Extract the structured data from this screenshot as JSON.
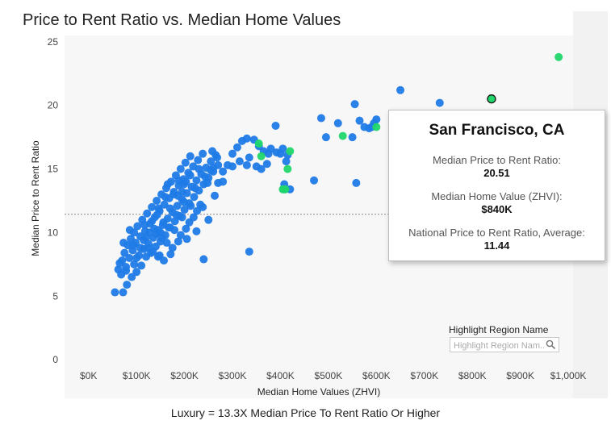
{
  "title": "Price to Rent Ratio vs. Median Home Values",
  "caption": "Luxury = 13.3X Median Price To Rent Ratio Or Higher",
  "colors": {
    "blue": "#1f7ae6",
    "green": "#21d66a",
    "reference_line": "#888888"
  },
  "chart_data": {
    "type": "scatter",
    "title": "Price to Rent Ratio vs. Median Home Values",
    "xlabel": "Median Home Values (ZHVI)",
    "ylabel": "Median Price to Rent Ratio",
    "xlim": [
      -50000,
      1010000
    ],
    "ylim": [
      -0.5,
      25.5
    ],
    "x_ticks": [
      0,
      100000,
      200000,
      300000,
      400000,
      500000,
      600000,
      700000,
      800000,
      900000,
      1000000
    ],
    "x_tick_labels": [
      "$0K",
      "$100K",
      "$200K",
      "$300K",
      "$400K",
      "$500K",
      "$600K",
      "$700K",
      "$800K",
      "$900K",
      "$1,000K"
    ],
    "y_ticks": [
      0,
      5,
      10,
      15,
      20,
      25
    ],
    "y_tick_labels": [
      "0",
      "5",
      "10",
      "15",
      "20",
      "25"
    ],
    "reference_line": {
      "y": 11.44,
      "style": "dotted"
    },
    "grid": false,
    "series": [
      {
        "color": "#1f7ae6",
        "points": [
          [
            55000,
            5.3
          ],
          [
            72000,
            5.3
          ],
          [
            80000,
            5.9
          ],
          [
            90000,
            6.5
          ],
          [
            68000,
            6.7
          ],
          [
            100000,
            6.9
          ],
          [
            62000,
            7.1
          ],
          [
            78000,
            7.3
          ],
          [
            95000,
            7.5
          ],
          [
            110000,
            7.4
          ],
          [
            70000,
            7.8
          ],
          [
            85000,
            8.0
          ],
          [
            105000,
            8.2
          ],
          [
            120000,
            8.1
          ],
          [
            75000,
            8.4
          ],
          [
            92000,
            8.6
          ],
          [
            115000,
            8.7
          ],
          [
            130000,
            8.4
          ],
          [
            82000,
            9.0
          ],
          [
            98000,
            9.2
          ],
          [
            125000,
            9.1
          ],
          [
            140000,
            8.9
          ],
          [
            88000,
            9.5
          ],
          [
            108000,
            9.7
          ],
          [
            135000,
            9.6
          ],
          [
            150000,
            9.3
          ],
          [
            95000,
            10.0
          ],
          [
            118000,
            10.1
          ],
          [
            145000,
            10.2
          ],
          [
            160000,
            9.8
          ],
          [
            102000,
            10.5
          ],
          [
            128000,
            10.7
          ],
          [
            155000,
            10.6
          ],
          [
            170000,
            10.4
          ],
          [
            112000,
            11.0
          ],
          [
            138000,
            11.2
          ],
          [
            165000,
            11.1
          ],
          [
            180000,
            10.9
          ],
          [
            122000,
            11.5
          ],
          [
            148000,
            11.7
          ],
          [
            175000,
            11.6
          ],
          [
            190000,
            11.3
          ],
          [
            132000,
            12.0
          ],
          [
            158000,
            12.2
          ],
          [
            185000,
            12.1
          ],
          [
            200000,
            11.8
          ],
          [
            142000,
            12.5
          ],
          [
            168000,
            12.7
          ],
          [
            195000,
            12.6
          ],
          [
            210000,
            12.3
          ],
          [
            152000,
            13.0
          ],
          [
            178000,
            13.2
          ],
          [
            205000,
            13.1
          ],
          [
            220000,
            12.8
          ],
          [
            162000,
            13.5
          ],
          [
            188000,
            13.7
          ],
          [
            215000,
            13.6
          ],
          [
            230000,
            13.3
          ],
          [
            172000,
            14.0
          ],
          [
            198000,
            14.2
          ],
          [
            225000,
            14.1
          ],
          [
            240000,
            13.8
          ],
          [
            182000,
            14.5
          ],
          [
            208000,
            14.7
          ],
          [
            235000,
            14.6
          ],
          [
            250000,
            14.3
          ],
          [
            192000,
            15.0
          ],
          [
            218000,
            15.2
          ],
          [
            245000,
            15.1
          ],
          [
            260000,
            14.8
          ],
          [
            202000,
            15.5
          ],
          [
            228000,
            15.7
          ],
          [
            255000,
            15.6
          ],
          [
            270000,
            15.3
          ],
          [
            212000,
            16.0
          ],
          [
            238000,
            16.2
          ],
          [
            265000,
            16.1
          ],
          [
            258000,
            16.4
          ],
          [
            100000,
            8.0
          ],
          [
            115000,
            9.4
          ],
          [
            132000,
            10.9
          ],
          [
            146000,
            11.9
          ],
          [
            160000,
            12.8
          ],
          [
            124000,
            8.8
          ],
          [
            141000,
            9.9
          ],
          [
            156000,
            10.8
          ],
          [
            170000,
            11.9
          ],
          [
            186000,
            12.9
          ],
          [
            134000,
            8.5
          ],
          [
            152000,
            9.6
          ],
          [
            167000,
            10.4
          ],
          [
            183000,
            11.4
          ],
          [
            199000,
            12.4
          ],
          [
            145000,
            8.1
          ],
          [
            163000,
            9.2
          ],
          [
            179000,
            10.2
          ],
          [
            195000,
            11.2
          ],
          [
            213000,
            12.1
          ],
          [
            157000,
            7.8
          ],
          [
            175000,
            8.8
          ],
          [
            192000,
            9.8
          ],
          [
            210000,
            10.8
          ],
          [
            226000,
            11.7
          ],
          [
            171000,
            8.3
          ],
          [
            187000,
            9.3
          ],
          [
            203000,
            10.3
          ],
          [
            219000,
            11.2
          ],
          [
            233000,
            12.2
          ],
          [
            240000,
            7.9
          ],
          [
            148000,
            8.2
          ],
          [
            205000,
            9.5
          ],
          [
            225000,
            10.1
          ],
          [
            195000,
            13.2
          ],
          [
            222000,
            13.5
          ],
          [
            248000,
            13.9
          ],
          [
            263000,
            12.9
          ],
          [
            238000,
            12.0
          ],
          [
            250000,
            11.0
          ],
          [
            255000,
            14.9
          ],
          [
            268000,
            15.9
          ],
          [
            280000,
            14.8
          ],
          [
            290000,
            15.3
          ],
          [
            300000,
            16.2
          ],
          [
            310000,
            16.7
          ],
          [
            320000,
            17.2
          ],
          [
            330000,
            17.4
          ],
          [
            345000,
            17.3
          ],
          [
            355000,
            16.8
          ],
          [
            365000,
            16.4
          ],
          [
            300000,
            15.2
          ],
          [
            315000,
            15.6
          ],
          [
            335000,
            15.9
          ],
          [
            350000,
            15.2
          ],
          [
            360000,
            15.0
          ],
          [
            280000,
            14.0
          ],
          [
            270000,
            13.9
          ],
          [
            330000,
            15.3
          ],
          [
            260000,
            15.1
          ],
          [
            372000,
            15.4
          ],
          [
            380000,
            16.6
          ],
          [
            392000,
            16.3
          ],
          [
            400000,
            16.2
          ],
          [
            390000,
            18.4
          ],
          [
            408000,
            13.8
          ],
          [
            412000,
            15.6
          ],
          [
            415000,
            16.1
          ],
          [
            420000,
            13.4
          ],
          [
            335000,
            8.5
          ],
          [
            408000,
            13.4
          ],
          [
            405000,
            16.6
          ],
          [
            375000,
            16.2
          ],
          [
            470000,
            14.1
          ],
          [
            485000,
            19.0
          ],
          [
            495000,
            17.5
          ],
          [
            520000,
            18.6
          ],
          [
            550000,
            17.5
          ],
          [
            555000,
            20.1
          ],
          [
            575000,
            18.3
          ],
          [
            590000,
            18.3
          ],
          [
            600000,
            18.9
          ],
          [
            650000,
            21.2
          ],
          [
            663000,
            14.2
          ],
          [
            692000,
            18.8
          ],
          [
            720000,
            19.0
          ],
          [
            732000,
            20.2
          ],
          [
            558000,
            13.9
          ],
          [
            565000,
            18.8
          ],
          [
            585000,
            18.2
          ],
          [
            595000,
            18.6
          ],
          [
            127000,
            10.0
          ],
          [
            117000,
            10.6
          ],
          [
            108000,
            8.8
          ],
          [
            93000,
            9.0
          ],
          [
            86000,
            10.2
          ],
          [
            78000,
            7.0
          ],
          [
            65000,
            7.6
          ],
          [
            73000,
            9.2
          ],
          [
            120000,
            9.6
          ],
          [
            137000,
            10.3
          ],
          [
            143000,
            11.4
          ],
          [
            150000,
            10.0
          ],
          [
            165000,
            13.8
          ],
          [
            177000,
            13.0
          ],
          [
            188000,
            14.1
          ],
          [
            199000,
            13.8
          ],
          [
            212000,
            14.5
          ],
          [
            203000,
            14.0
          ],
          [
            230000,
            15.0
          ],
          [
            243000,
            14.4
          ]
        ]
      },
      {
        "color": "#21d66a",
        "points": [
          [
            355000,
            17.0
          ],
          [
            360000,
            16.0
          ],
          [
            405000,
            13.4
          ],
          [
            410000,
            13.4
          ],
          [
            415000,
            15.0
          ],
          [
            420000,
            16.4
          ],
          [
            530000,
            17.6
          ],
          [
            600000,
            18.3
          ],
          [
            840000,
            20.5
          ],
          [
            980000,
            23.8
          ]
        ]
      }
    ],
    "highlighted_point": {
      "x": 840000,
      "y": 20.51,
      "name": "San Francisco, CA"
    }
  },
  "tooltip": {
    "title": "San Francisco, CA",
    "ratio_label": "Median Price to Rent Ratio:",
    "ratio_value": "20.51",
    "value_label": "Median Home Value (ZHVI):",
    "value_value": "$840K",
    "national_label": "National Price to Rent Ratio, Average:",
    "national_value": "11.44"
  },
  "highlight": {
    "title": "Highlight Region Name",
    "placeholder": "Highlight Region Nam...",
    "search_icon": "search-icon"
  }
}
